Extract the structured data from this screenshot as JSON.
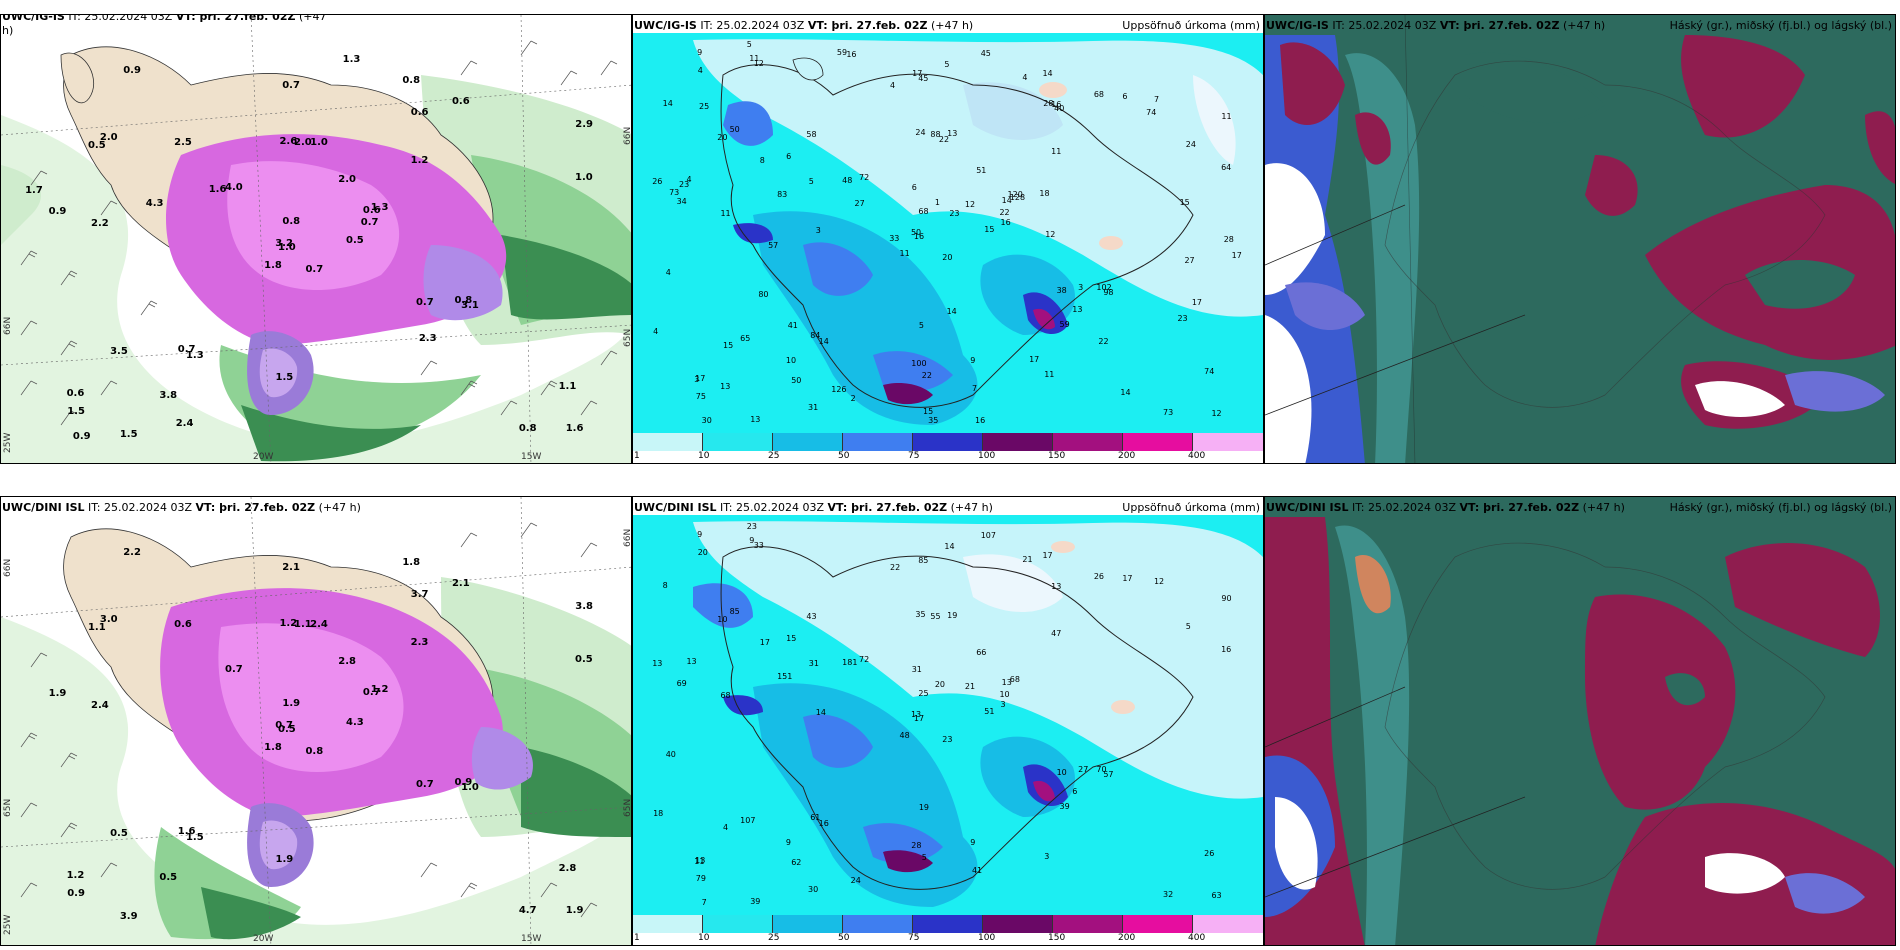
{
  "panels": {
    "top_left": {
      "title_prefix": "UWC/IG-IS",
      "title_it": "IT: 25.02.2024 03Z",
      "title_vt": "VT: þri. 27.feb. 02Z",
      "title_lead": "(+47",
      "title_lead2": "h)"
    },
    "top_mid": {
      "title_prefix": "UWC/IG-IS",
      "title_it": "IT: 25.02.2024 03Z",
      "title_vt": "VT: þri. 27.feb. 02Z",
      "title_lead": "(+47 h)",
      "title_right": "Uppsöfnuð úrkoma (mm)"
    },
    "top_right": {
      "title_prefix": "UWC/IG-IS",
      "title_it": "IT: 25.02.2024 03Z",
      "title_vt": "VT: þri. 27.feb. 02Z",
      "title_lead": "(+47 h)",
      "title_right": "Háský (gr.), miðský (fj.bl.) og lágský (bl.)"
    },
    "bottom_left": {
      "title_prefix": "UWC/DINI ISL",
      "title_it": "IT: 25.02.2024 03Z",
      "title_vt": "VT: þri. 27.feb. 02Z",
      "title_lead": "(+47 h)"
    },
    "bottom_mid": {
      "title_prefix": "UWC/DINI ISL",
      "title_it": "IT: 25.02.2024 03Z",
      "title_vt": "VT: þri. 27.feb. 02Z",
      "title_lead": "(+47 h)",
      "title_right": "Uppsöfnuð úrkoma (mm)"
    },
    "bottom_right": {
      "title_prefix": "UWC/DINI ISL",
      "title_it": "IT: 25.02.2024 03Z",
      "title_vt": "VT: þri. 27.feb. 02Z",
      "title_lead": "(+47 h)",
      "title_right": "Háský (gr.), miðský (fj.bl.) og lágský (bl.)"
    }
  },
  "grid_labels": {
    "lat66": "66N",
    "lat65": "65N",
    "lon20": "20W",
    "lon15": "15W",
    "lon25": "25W"
  },
  "colorbar": {
    "labels": [
      "1",
      "10",
      "25",
      "50",
      "75",
      "100",
      "150",
      "200",
      "400"
    ],
    "colors": [
      "#c8f6f8",
      "#26e8ee",
      "#17bde6",
      "#3f7ef0",
      "#2a33c8",
      "#6a0866",
      "#a3107f",
      "#e60d9f",
      "#f6b0f5"
    ]
  },
  "colors": {
    "snow_magenta": "#d768e0",
    "land_tan": "#efe1cc",
    "green_light": "#c9ecc8",
    "green_mid": "#6cc37a",
    "green_dark": "#2c7a42",
    "precip_base": "#1ceef2",
    "precip_pale": "#c6f4fa",
    "cloud_dark": "#2d6a5e",
    "cloud_red": "#8f1d4f",
    "cloud_blue": "#6b6fd6"
  },
  "top_left_values": [
    "0.7",
    "0.5",
    "1.0",
    "0.6",
    "0.6",
    "1.3",
    "0.8",
    "1.0",
    "0.6",
    "0.5",
    "0.9",
    "1.6",
    "2.2",
    "2.9",
    "1.8",
    "1.2",
    "1.5",
    "2.6",
    "2.0",
    "3.5",
    "4.0",
    "1.5",
    "3.8",
    "2.0",
    "1.3",
    "3.1",
    "2.0",
    "0.7",
    "0.9",
    "0.7",
    "1.0",
    "3.2",
    "1.5",
    "0.8",
    "2.5",
    "0.6",
    "0.7",
    "0.8",
    "1.1",
    "0.8",
    "1.3",
    "1.6",
    "4.3",
    "2.3",
    "2.4",
    "1.7",
    "0.7",
    "0.9"
  ],
  "bottom_left_values": [
    "0.8",
    "1.1",
    "0.5",
    "1.2",
    "0.7",
    "1.5",
    "1.8",
    "2.4",
    "3.7",
    "4.3",
    "2.2",
    "1.9",
    "2.4",
    "3.8",
    "1.8",
    "2.3",
    "3.9",
    "1.2",
    "2.8",
    "0.5",
    "0.7",
    "0.9",
    "0.5",
    "1.1",
    "1.2",
    "1.0",
    "3.0",
    "2.1",
    "1.9",
    "0.7",
    "0.5",
    "0.7",
    "1.9",
    "1.9",
    "0.6",
    "2.1",
    "1.6",
    "4.7",
    "2.8",
    "0.9"
  ],
  "top_mid_values": [
    "20",
    "20",
    "16",
    "17",
    "14",
    "14",
    "14",
    "13",
    "16",
    "15",
    "12",
    "12",
    "11",
    "11",
    "11",
    "11",
    "13",
    "24",
    "51",
    "65",
    "72",
    "75",
    "50",
    "88",
    "128",
    "98",
    "50",
    "45",
    "34",
    "38",
    "64",
    "50",
    "100",
    "68",
    "58",
    "68",
    "84",
    "73",
    "74",
    "102",
    "45",
    "48",
    "83",
    "59",
    "31",
    "26",
    "22",
    "30",
    "22",
    "16",
    "15",
    "24",
    "14",
    "13",
    "11",
    "10",
    "11",
    "9",
    "9",
    "7",
    "5",
    "3",
    "4",
    "6",
    "6",
    "5",
    "4",
    "4",
    "1",
    "4",
    "5",
    "2",
    "3",
    "5",
    "3",
    "4",
    "8",
    "4",
    "6",
    "7",
    "12",
    "13",
    "12",
    "17",
    "15",
    "15",
    "14",
    "14",
    "16",
    "17",
    "17",
    "17",
    "18",
    "22",
    "23",
    "23",
    "23",
    "35",
    "28",
    "40",
    "57",
    "59",
    "28",
    "73",
    "80",
    "41",
    "126",
    "120",
    "74",
    "27",
    "27",
    "25",
    "22",
    "33",
    "16"
  ],
  "bottom_mid_values": [
    "23",
    "10",
    "17",
    "13",
    "13",
    "16",
    "17",
    "19",
    "13",
    "51",
    "33",
    "63",
    "68",
    "90",
    "48",
    "47",
    "39",
    "35",
    "66",
    "107",
    "72",
    "79",
    "62",
    "55",
    "68",
    "57",
    "85",
    "85",
    "69",
    "10",
    "16",
    "13",
    "28",
    "25",
    "43",
    "26",
    "61",
    "32",
    "26",
    "70",
    "107",
    "181",
    "151",
    "39",
    "30",
    "13",
    "10",
    "7",
    "5",
    "3",
    "4",
    "5",
    "8",
    "6",
    "3",
    "9",
    "9",
    "9",
    "9",
    "12",
    "14",
    "14",
    "13",
    "15",
    "17",
    "23",
    "21",
    "22",
    "20",
    "18",
    "19",
    "24",
    "27",
    "31",
    "11",
    "20",
    "17",
    "40",
    "31",
    "41",
    "21"
  ]
}
